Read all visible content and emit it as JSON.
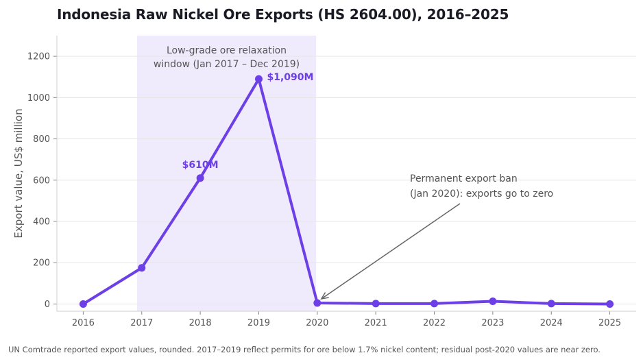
{
  "chart_data": {
    "type": "line",
    "title": "Indonesia Raw Nickel Ore Exports (HS 2604.00), 2016–2025",
    "xlabel": "",
    "ylabel": "Export value, US$ million",
    "x": [
      2016,
      2017,
      2018,
      2019,
      2020,
      2021,
      2022,
      2023,
      2024,
      2025
    ],
    "values": [
      0,
      175,
      610,
      1090,
      5,
      2,
      2,
      13,
      2,
      0
    ],
    "ylim": [
      -35,
      1300
    ],
    "xlim": [
      2015.55,
      2025.45
    ],
    "yticks": [
      0,
      200,
      400,
      600,
      800,
      1000,
      1200
    ],
    "xticks": [
      2016,
      2017,
      2018,
      2019,
      2020,
      2021,
      2022,
      2023,
      2024,
      2025
    ],
    "grid": true,
    "series_color": "#6d3fe6",
    "shade_color": "#efeafc",
    "shaded_region": {
      "x_start": 2016.92,
      "x_end": 2019.98,
      "label_lines": [
        "Low-grade ore relaxation",
        "window (Jan 2017 – Dec 2019)"
      ]
    },
    "data_labels": [
      {
        "x": 2018,
        "y": 610,
        "text": "$610M"
      },
      {
        "x": 2019,
        "y": 1090,
        "text": "$1,090M"
      }
    ],
    "annotation": {
      "text_lines": [
        "Permanent export ban",
        "(Jan 2020): exports go to zero"
      ],
      "arrow_to": {
        "x": 2020,
        "y": 5
      }
    }
  },
  "footnote": "UN Comtrade reported export values, rounded. 2017–2019 reflect permits for ore below 1.7% nickel content; residual post-2020 values are near zero."
}
